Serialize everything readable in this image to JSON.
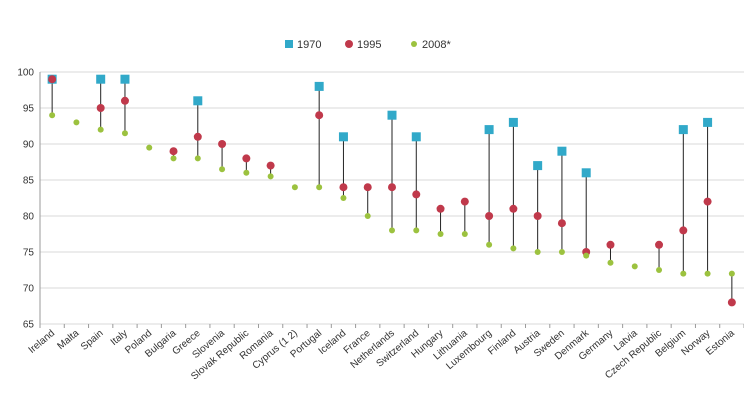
{
  "chart_data": {
    "type": "scatter",
    "title": "",
    "xlabel": "",
    "ylabel": "",
    "ylim": [
      65,
      100
    ],
    "yticks": [
      65,
      70,
      75,
      80,
      85,
      90,
      95,
      100
    ],
    "grid": "horizontal",
    "legend_position": "top-center",
    "categories": [
      "Ireland",
      "Malta",
      "Spain",
      "Italy",
      "Poland",
      "Bulgaria",
      "Greece",
      "Slovenia",
      "Slovak Republic",
      "Romania",
      "Cyprus (1 2)",
      "Portugal",
      "Iceland",
      "France",
      "Netherlands",
      "Switzerland",
      "Hungary",
      "Lithuania",
      "Luxembourg",
      "Finland",
      "Austria",
      "Sweden",
      "Denmark",
      "Germany",
      "Latvia",
      "Czech Republic",
      "Belgium",
      "Norway",
      "Estonia"
    ],
    "series": [
      {
        "name": "1970",
        "color": "#31a9c9",
        "marker": "square",
        "values": [
          99,
          null,
          99,
          99,
          null,
          null,
          96,
          null,
          null,
          null,
          null,
          98,
          91,
          null,
          94,
          91,
          null,
          null,
          92,
          93,
          87,
          89,
          86,
          null,
          null,
          null,
          92,
          93,
          null
        ]
      },
      {
        "name": "1995",
        "color": "#c0394b",
        "marker": "circle",
        "values": [
          99,
          null,
          95,
          96,
          null,
          89,
          91,
          90,
          88,
          87,
          null,
          94,
          84,
          84,
          84,
          83,
          81,
          82,
          80,
          81,
          80,
          79,
          75,
          76,
          null,
          76,
          78,
          82,
          68
        ]
      },
      {
        "name": "2008*",
        "color": "#9cc23f",
        "marker": "circle",
        "values": [
          94,
          93,
          92,
          91.5,
          89.5,
          88,
          88,
          86.5,
          86,
          85.5,
          84,
          84,
          82.5,
          80,
          78,
          78,
          77.5,
          77.5,
          76,
          75.5,
          75,
          75,
          74.5,
          73.5,
          73,
          72.5,
          72,
          72,
          72
        ]
      }
    ]
  }
}
